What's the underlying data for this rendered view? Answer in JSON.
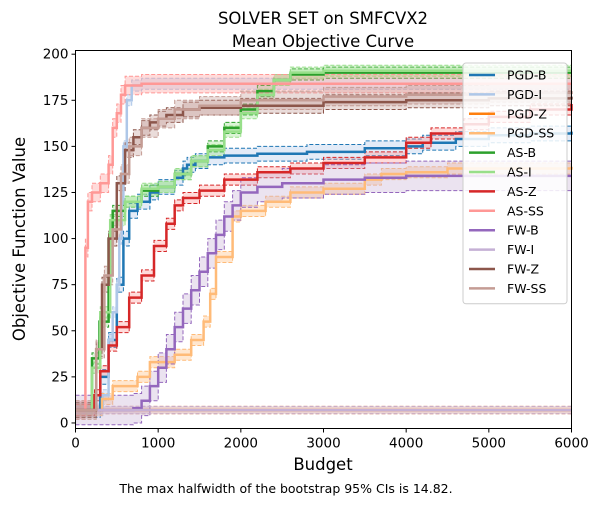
{
  "chart_data": {
    "type": "line",
    "title_line1": "SOLVER SET on SMFCVX2",
    "title_line2": "Mean Objective Curve",
    "xlabel": "Budget",
    "ylabel": "Objective Function Value",
    "caption": "The max halfwidth of the bootstrap 95% CIs is 14.82.",
    "xlim": [
      0,
      6000
    ],
    "ylim": [
      -3,
      202
    ],
    "xticks": [
      0,
      1000,
      2000,
      3000,
      4000,
      5000,
      6000
    ],
    "yticks": [
      0,
      25,
      50,
      75,
      100,
      125,
      150,
      175,
      200
    ],
    "grid": false,
    "legend_position": "top-right",
    "series": [
      {
        "name": "PGD-B",
        "color": "#1f77b4",
        "ci": 4,
        "ci_fill": "#aec7e8",
        "points": [
          [
            0,
            7
          ],
          [
            180,
            7
          ],
          [
            300,
            25
          ],
          [
            400,
            45
          ],
          [
            500,
            75
          ],
          [
            580,
            100
          ],
          [
            650,
            115
          ],
          [
            750,
            120
          ],
          [
            900,
            125
          ],
          [
            1000,
            128
          ],
          [
            1200,
            133
          ],
          [
            1300,
            138
          ],
          [
            1350,
            140
          ],
          [
            1450,
            142
          ],
          [
            1600,
            144
          ],
          [
            1800,
            145
          ],
          [
            2200,
            146
          ],
          [
            2800,
            147
          ],
          [
            3500,
            149
          ],
          [
            4000,
            150
          ],
          [
            4200,
            152
          ],
          [
            4600,
            154
          ],
          [
            5000,
            156
          ],
          [
            5500,
            157
          ],
          [
            6000,
            158
          ]
        ]
      },
      {
        "name": "PGD-I",
        "color": "#aec7e8",
        "ci": 3,
        "ci_fill": "#aec7e8",
        "points": [
          [
            0,
            7
          ],
          [
            280,
            7
          ],
          [
            330,
            15
          ],
          [
            400,
            45
          ],
          [
            450,
            60
          ],
          [
            500,
            75
          ],
          [
            530,
            100
          ],
          [
            560,
            120
          ],
          [
            580,
            150
          ],
          [
            620,
            175
          ],
          [
            680,
            183
          ],
          [
            800,
            184
          ],
          [
            6000,
            184
          ]
        ]
      },
      {
        "name": "PGD-Z",
        "color": "#ff7f0e",
        "ci": 2,
        "ci_fill": "#ffbb78",
        "points": [
          [
            0,
            7
          ],
          [
            6000,
            7
          ]
        ]
      },
      {
        "name": "PGD-SS",
        "color": "#ffbb78",
        "ci": 3,
        "ci_fill": "#ffbb78",
        "points": [
          [
            0,
            7
          ],
          [
            300,
            7
          ],
          [
            320,
            13
          ],
          [
            450,
            20
          ],
          [
            750,
            25
          ],
          [
            900,
            33
          ],
          [
            1100,
            33
          ],
          [
            1200,
            37
          ],
          [
            1400,
            45
          ],
          [
            1550,
            55
          ],
          [
            1630,
            70
          ],
          [
            1700,
            90
          ],
          [
            1830,
            90
          ],
          [
            1900,
            112
          ],
          [
            2000,
            115
          ],
          [
            2300,
            120
          ],
          [
            2600,
            125
          ],
          [
            3000,
            127
          ],
          [
            3500,
            132
          ],
          [
            3700,
            135
          ],
          [
            4000,
            136
          ],
          [
            4500,
            138
          ],
          [
            6000,
            139
          ]
        ]
      },
      {
        "name": "AS-B",
        "color": "#2ca02c",
        "ci": 3,
        "ci_fill": "#98df8a",
        "points": [
          [
            0,
            7
          ],
          [
            130,
            7
          ],
          [
            200,
            35
          ],
          [
            290,
            55
          ],
          [
            400,
            100
          ],
          [
            450,
            115
          ],
          [
            600,
            120
          ],
          [
            800,
            126
          ],
          [
            1000,
            128
          ],
          [
            1200,
            135
          ],
          [
            1400,
            142
          ],
          [
            1600,
            150
          ],
          [
            1800,
            160
          ],
          [
            2000,
            170
          ],
          [
            2200,
            180
          ],
          [
            2400,
            186
          ],
          [
            2600,
            189
          ],
          [
            3000,
            190
          ],
          [
            6000,
            190
          ]
        ]
      },
      {
        "name": "AS-I",
        "color": "#98df8a",
        "ci": 3,
        "ci_fill": "#98df8a",
        "points": [
          [
            0,
            7
          ],
          [
            140,
            7
          ],
          [
            200,
            30
          ],
          [
            300,
            60
          ],
          [
            420,
            110
          ],
          [
            600,
            120
          ],
          [
            800,
            127
          ],
          [
            1000,
            128
          ],
          [
            1200,
            135
          ],
          [
            1400,
            142
          ],
          [
            1600,
            148
          ],
          [
            1800,
            158
          ],
          [
            2000,
            168
          ],
          [
            2200,
            178
          ],
          [
            2400,
            186
          ],
          [
            2600,
            190
          ],
          [
            3000,
            191
          ],
          [
            6000,
            191
          ]
        ]
      },
      {
        "name": "AS-Z",
        "color": "#d62728",
        "ci": 3,
        "ci_fill": "#ff9896",
        "points": [
          [
            0,
            7
          ],
          [
            200,
            7
          ],
          [
            230,
            15
          ],
          [
            300,
            28
          ],
          [
            400,
            42
          ],
          [
            500,
            52
          ],
          [
            650,
            68
          ],
          [
            800,
            80
          ],
          [
            950,
            96
          ],
          [
            1100,
            108
          ],
          [
            1200,
            118
          ],
          [
            1300,
            122
          ],
          [
            1500,
            126
          ],
          [
            1800,
            132
          ],
          [
            2200,
            136
          ],
          [
            2600,
            138
          ],
          [
            3000,
            141
          ],
          [
            3500,
            144
          ],
          [
            4000,
            152
          ],
          [
            4300,
            157
          ],
          [
            4700,
            162
          ],
          [
            5000,
            166
          ],
          [
            5500,
            170
          ],
          [
            6000,
            173
          ]
        ]
      },
      {
        "name": "AS-SS",
        "color": "#ff9896",
        "ci": 5,
        "ci_fill": "#ff9896",
        "points": [
          [
            0,
            7
          ],
          [
            100,
            7
          ],
          [
            120,
            95
          ],
          [
            150,
            120
          ],
          [
            200,
            125
          ],
          [
            300,
            130
          ],
          [
            400,
            140
          ],
          [
            450,
            160
          ],
          [
            500,
            168
          ],
          [
            550,
            178
          ],
          [
            600,
            183
          ],
          [
            800,
            184
          ],
          [
            6000,
            184
          ]
        ]
      },
      {
        "name": "FW-B",
        "color": "#9467bd",
        "ci": 8,
        "ci_fill": "#c5b0d5",
        "points": [
          [
            0,
            7
          ],
          [
            500,
            7
          ],
          [
            700,
            8
          ],
          [
            800,
            12
          ],
          [
            900,
            20
          ],
          [
            1000,
            30
          ],
          [
            1100,
            40
          ],
          [
            1200,
            52
          ],
          [
            1300,
            62
          ],
          [
            1400,
            72
          ],
          [
            1500,
            82
          ],
          [
            1600,
            92
          ],
          [
            1700,
            102
          ],
          [
            1800,
            112
          ],
          [
            1900,
            118
          ],
          [
            2000,
            125
          ],
          [
            2200,
            128
          ],
          [
            2500,
            130
          ],
          [
            3000,
            132
          ],
          [
            3500,
            133
          ],
          [
            4000,
            134
          ],
          [
            6000,
            134
          ]
        ]
      },
      {
        "name": "FW-I",
        "color": "#c5b0d5",
        "ci": 2,
        "ci_fill": "#c5b0d5",
        "points": [
          [
            0,
            7
          ],
          [
            6000,
            7
          ]
        ]
      },
      {
        "name": "FW-Z",
        "color": "#8c564b",
        "ci": 4,
        "ci_fill": "#c49c94",
        "points": [
          [
            0,
            7
          ],
          [
            150,
            7
          ],
          [
            250,
            40
          ],
          [
            320,
            75
          ],
          [
            400,
            100
          ],
          [
            500,
            130
          ],
          [
            600,
            148
          ],
          [
            700,
            155
          ],
          [
            800,
            160
          ],
          [
            900,
            163
          ],
          [
            1000,
            165
          ],
          [
            1100,
            167
          ],
          [
            1300,
            170
          ],
          [
            1500,
            171
          ],
          [
            2000,
            172
          ],
          [
            3000,
            174
          ],
          [
            4000,
            175
          ],
          [
            5000,
            176
          ],
          [
            6000,
            177
          ]
        ]
      },
      {
        "name": "FW-SS",
        "color": "#c49c94",
        "ci": 5,
        "ci_fill": "#c49c94",
        "points": [
          [
            0,
            7
          ],
          [
            150,
            7
          ],
          [
            250,
            40
          ],
          [
            350,
            80
          ],
          [
            450,
            105
          ],
          [
            550,
            135
          ],
          [
            650,
            150
          ],
          [
            800,
            160
          ],
          [
            1000,
            165
          ],
          [
            1200,
            170
          ],
          [
            1500,
            172
          ],
          [
            2000,
            175
          ],
          [
            3000,
            177
          ],
          [
            4000,
            178
          ],
          [
            5000,
            179
          ],
          [
            6000,
            180
          ]
        ]
      }
    ]
  }
}
